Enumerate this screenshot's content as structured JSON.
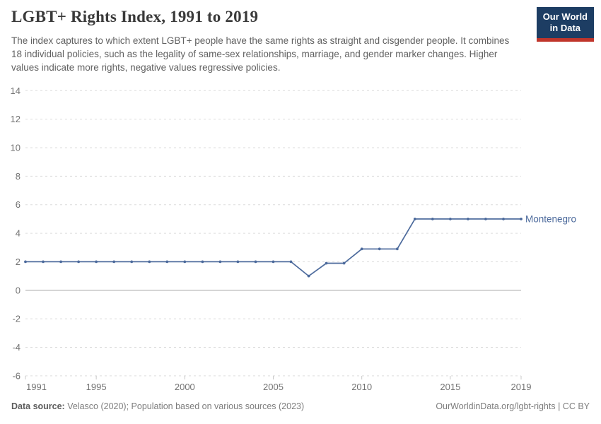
{
  "header": {
    "title": "LGBT+ Rights Index, 1991 to 2019",
    "subtitle": "The index captures to which extent LGBT+ people have the same rights as straight and cisgender people. It combines 18 individual policies, such as the legality of same-sex relationships, marriage, and gender marker changes. Higher values indicate more rights, negative values regressive policies.",
    "logo": {
      "line1": "Our World",
      "line2": "in Data",
      "bg_color": "#1d3d63",
      "accent_color": "#c0352b"
    }
  },
  "chart_data": {
    "type": "line",
    "title": "LGBT+ Rights Index, 1991 to 2019",
    "xlabel": "",
    "ylabel": "",
    "ylim": [
      -6,
      14
    ],
    "xlim": [
      1991,
      2019
    ],
    "grid": "horizontal-dashed",
    "legend_position": "end-of-line-label",
    "y_ticks": [
      14,
      12,
      10,
      8,
      6,
      4,
      2,
      0,
      -2,
      -4,
      -6
    ],
    "x_ticks": [
      1991,
      1995,
      2000,
      2005,
      2010,
      2015,
      2019
    ],
    "x": [
      1991,
      1992,
      1993,
      1994,
      1995,
      1996,
      1997,
      1998,
      1999,
      2000,
      2001,
      2002,
      2003,
      2004,
      2005,
      2006,
      2007,
      2008,
      2009,
      2010,
      2011,
      2012,
      2013,
      2014,
      2015,
      2016,
      2017,
      2018,
      2019
    ],
    "series": [
      {
        "name": "Montenegro",
        "color": "#4c6a9c",
        "values": [
          2,
          2,
          2,
          2,
          2,
          2,
          2,
          2,
          2,
          2,
          2,
          2,
          2,
          2,
          2,
          2,
          1,
          1.9,
          1.9,
          2.9,
          2.9,
          2.9,
          5,
          5,
          5,
          5,
          5,
          5,
          5
        ]
      }
    ],
    "colors": {
      "gridline": "#dcdcdc",
      "zero_line": "#a3a3a3",
      "tick_label": "#737373",
      "tick_mark": "#c8c8c8"
    }
  },
  "footer": {
    "source_label": "Data source:",
    "source_text": " Velasco (2020); Population based on various sources (2023)",
    "link_text": "OurWorldinData.org/lgbt-rights | CC BY"
  }
}
